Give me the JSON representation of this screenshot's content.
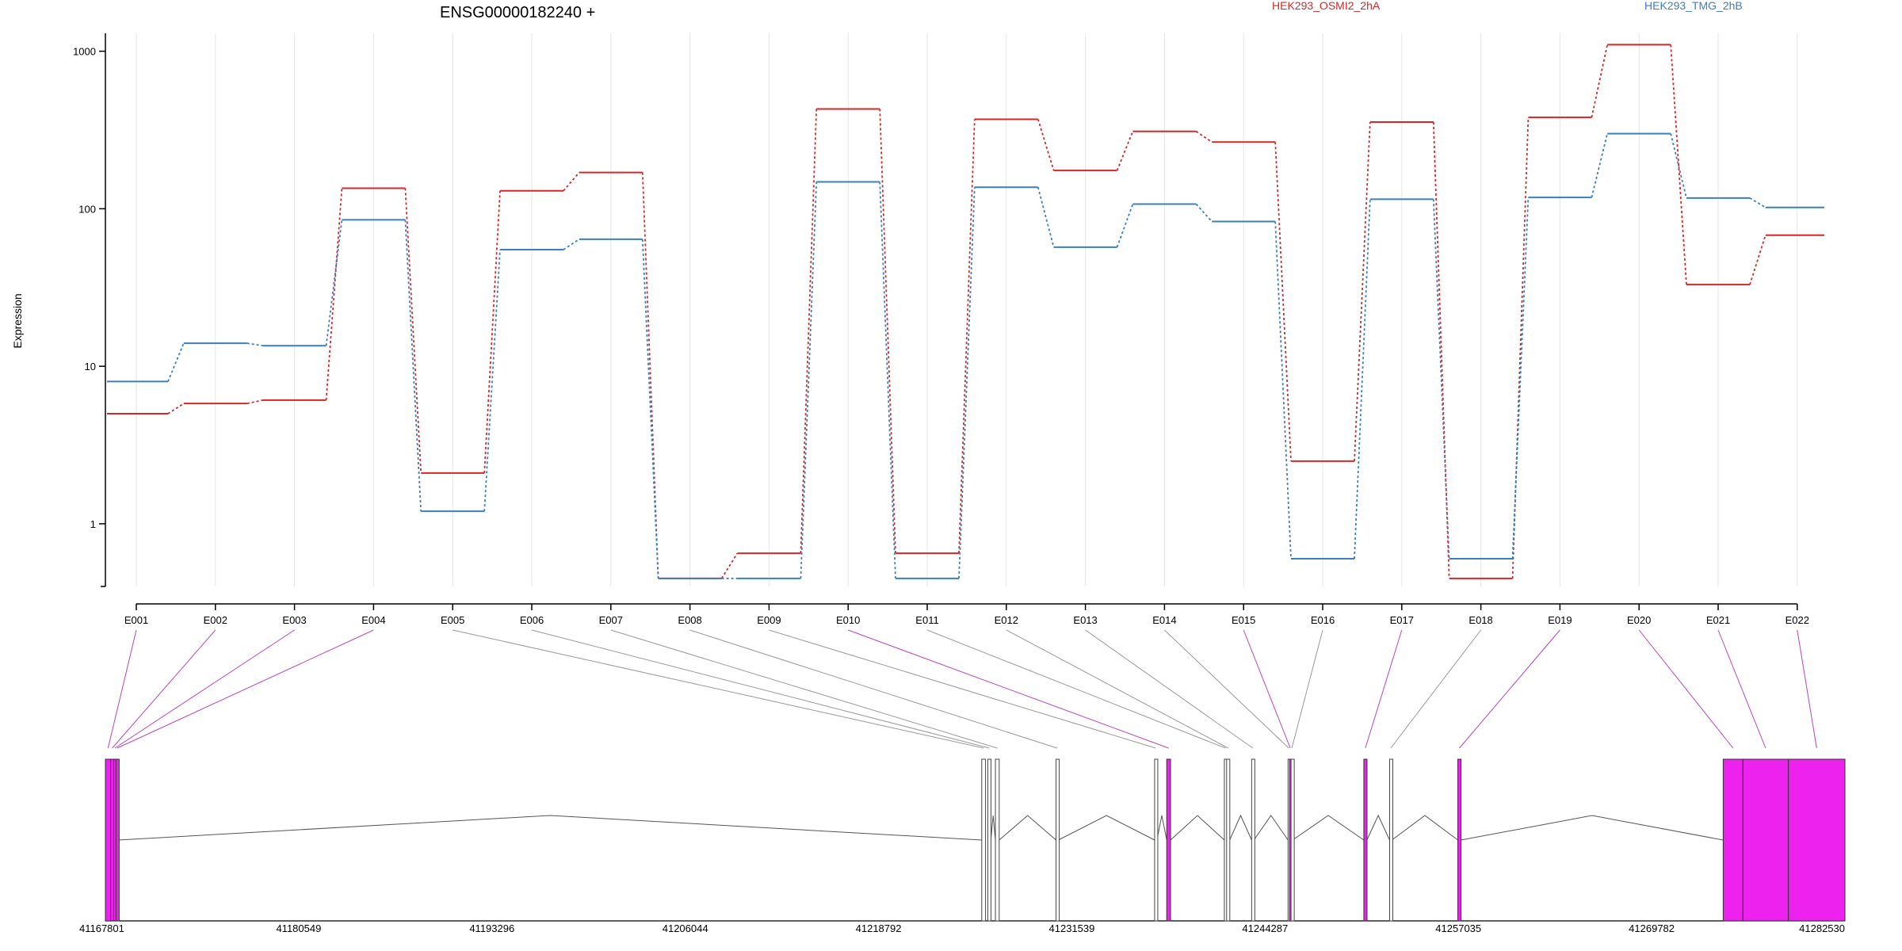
{
  "chart_data": {
    "type": "line",
    "title": "ENSG00000182240 +",
    "ylabel": "Expression",
    "yscale": "log",
    "ylim": [
      0.4,
      1300
    ],
    "yticks": [
      1,
      10,
      100,
      1000
    ],
    "ytick_labels": [
      "1",
      "10",
      "100",
      "1000"
    ],
    "grid": "vertical at exon centers",
    "legend": "top",
    "categories": [
      "E001",
      "E002",
      "E003",
      "E004",
      "E005",
      "E006",
      "E007",
      "E008",
      "E009",
      "E010",
      "E011",
      "E012",
      "E013",
      "E014",
      "E015",
      "E016",
      "E017",
      "E018",
      "E019",
      "E020",
      "E021",
      "E022"
    ],
    "series": [
      {
        "name": "HEK293_OSMI2_2hA",
        "color": "#d62728",
        "values": [
          5,
          5.8,
          6.1,
          135,
          2.1,
          130,
          170,
          0.45,
          0.65,
          430,
          0.65,
          370,
          175,
          310,
          265,
          2.5,
          355,
          0.45,
          380,
          1100,
          33,
          68
        ]
      },
      {
        "name": "HEK293_TMG_2hB",
        "color": "#3a7fbf",
        "values": [
          8,
          14,
          13.5,
          85,
          1.2,
          55,
          64,
          0.45,
          0.45,
          148,
          0.45,
          137,
          57,
          107,
          83,
          0.6,
          115,
          0.6,
          118,
          300,
          117,
          102
        ]
      }
    ],
    "gene_model": {
      "coordinate_ticks": [
        "41167801",
        "41180549",
        "41193296",
        "41206044",
        "41218792",
        "41231539",
        "41244287",
        "41257035",
        "41269782",
        "41282530"
      ],
      "coordinate_range": [
        41167801,
        41282530
      ],
      "highlight_color": "#ee22ee",
      "exons": [
        {
          "id": "E001",
          "start": 41167801,
          "end": 41168150,
          "highlight": true
        },
        {
          "id": "E002",
          "start": 41168150,
          "end": 41168350,
          "highlight": true
        },
        {
          "id": "E003",
          "start": 41168350,
          "end": 41168500,
          "highlight": true
        },
        {
          "id": "E004",
          "start": 41168500,
          "end": 41168650,
          "highlight": true
        },
        {
          "id": "E005",
          "start": 41225600,
          "end": 41225850,
          "highlight": false
        },
        {
          "id": "E006",
          "start": 41226000,
          "end": 41226200,
          "highlight": false
        },
        {
          "id": "E007",
          "start": 41226500,
          "end": 41226750,
          "highlight": false
        },
        {
          "id": "E008",
          "start": 41230500,
          "end": 41230650,
          "highlight": false
        },
        {
          "id": "E009",
          "start": 41237000,
          "end": 41237150,
          "highlight": false
        },
        {
          "id": "E010",
          "start": 41237800,
          "end": 41238050,
          "highlight": true
        },
        {
          "id": "E011",
          "start": 41241600,
          "end": 41241750,
          "highlight": false
        },
        {
          "id": "E012",
          "start": 41241750,
          "end": 41241950,
          "highlight": false
        },
        {
          "id": "E013",
          "start": 41243400,
          "end": 41243550,
          "highlight": false
        },
        {
          "id": "E014",
          "start": 41245800,
          "end": 41245900,
          "highlight": false
        },
        {
          "id": "E015",
          "start": 41245900,
          "end": 41246000,
          "highlight": true
        },
        {
          "id": "E016",
          "start": 41246000,
          "end": 41246100,
          "highlight": false
        },
        {
          "id": "E017",
          "start": 41250800,
          "end": 41251000,
          "highlight": true
        },
        {
          "id": "E018",
          "start": 41252500,
          "end": 41252650,
          "highlight": false
        },
        {
          "id": "E019",
          "start": 41257000,
          "end": 41257200,
          "highlight": true
        },
        {
          "id": "E020",
          "start": 41274500,
          "end": 41275800,
          "highlight": true
        },
        {
          "id": "E021",
          "start": 41275800,
          "end": 41278800,
          "highlight": true
        },
        {
          "id": "E022",
          "start": 41278800,
          "end": 41282530,
          "highlight": true
        }
      ]
    }
  }
}
